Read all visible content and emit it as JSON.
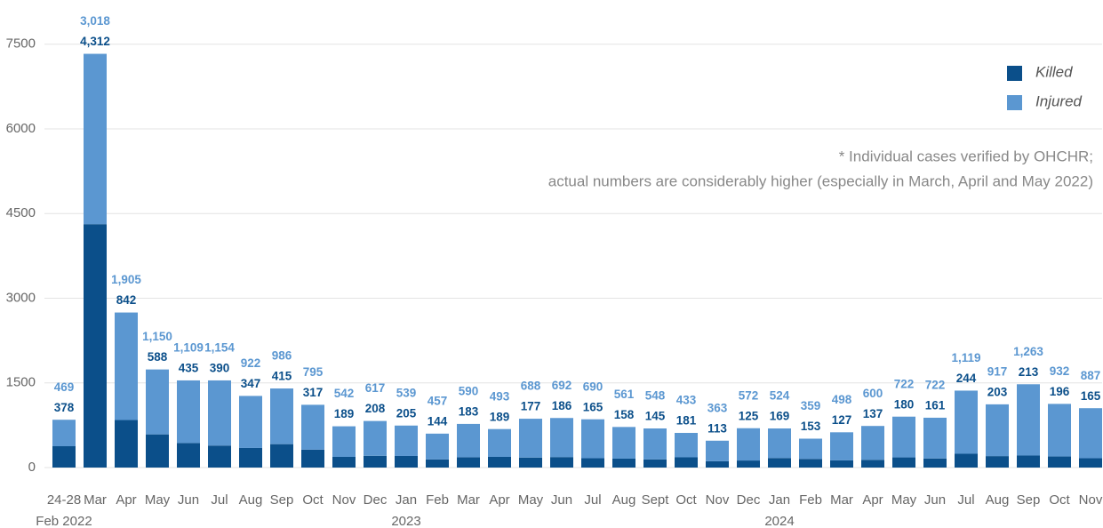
{
  "chart_data": {
    "type": "stacked_bar",
    "categories": [
      "24-28",
      "Mar",
      "Apr",
      "May",
      "Jun",
      "Jul",
      "Aug",
      "Sep",
      "Oct",
      "Nov",
      "Dec",
      "Jan",
      "Feb",
      "Mar",
      "Apr",
      "May",
      "Jun",
      "Jul",
      "Aug",
      "Sept",
      "Oct",
      "Nov",
      "Dec",
      "Jan",
      "Feb",
      "Mar",
      "Apr",
      "May",
      "Jun",
      "Jul",
      "Aug",
      "Sep",
      "Oct",
      "Nov"
    ],
    "category_groups": [
      "Feb 2022",
      null,
      null,
      null,
      null,
      null,
      null,
      null,
      null,
      null,
      null,
      "2023",
      null,
      null,
      null,
      null,
      null,
      null,
      null,
      null,
      null,
      null,
      null,
      "2024",
      null,
      null,
      null,
      null,
      null,
      null,
      null,
      null,
      null,
      null
    ],
    "series": [
      {
        "name": "Killed",
        "color": "#0b4f8a",
        "values": [
          378,
          4312,
          842,
          588,
          435,
          390,
          347,
          415,
          317,
          189,
          208,
          205,
          144,
          183,
          189,
          177,
          186,
          165,
          158,
          145,
          181,
          113,
          125,
          169,
          153,
          127,
          137,
          180,
          161,
          244,
          203,
          213,
          196,
          165
        ],
        "value_labels": [
          "378",
          "4,312",
          "842",
          "588",
          "435",
          "390",
          "347",
          "415",
          "317",
          "189",
          "208",
          "205",
          "144",
          "183",
          "189",
          "177",
          "186",
          "165",
          "158",
          "145",
          "181",
          "113",
          "125",
          "169",
          "153",
          "127",
          "137",
          "180",
          "161",
          "244",
          "203",
          "213",
          "196",
          "165"
        ]
      },
      {
        "name": "Injured",
        "color": "#5b97d1",
        "values": [
          469,
          3018,
          1905,
          1150,
          1109,
          1154,
          922,
          986,
          795,
          542,
          617,
          539,
          457,
          590,
          493,
          688,
          692,
          690,
          561,
          548,
          433,
          363,
          572,
          524,
          359,
          498,
          600,
          722,
          722,
          1119,
          917,
          1263,
          932,
          887
        ],
        "value_labels": [
          "469",
          "3,018",
          "1,905",
          "1,150",
          "1,109",
          "1,154",
          "922",
          "986",
          "795",
          "542",
          "617",
          "539",
          "457",
          "590",
          "493",
          "688",
          "692",
          "690",
          "561",
          "548",
          "433",
          "363",
          "572",
          "524",
          "359",
          "498",
          "600",
          "722",
          "722",
          "1,119",
          "917",
          "1,263",
          "932",
          "887"
        ]
      }
    ],
    "ylim": [
      0,
      8000
    ],
    "yticks": [
      0,
      1500,
      3000,
      4500,
      6000,
      7500
    ],
    "grid": true,
    "legend": "top-right",
    "annotation": [
      "* Individual cases verified by OHCHR;",
      "actual numbers are considerably higher (especially in March, April and May 2022)"
    ]
  }
}
